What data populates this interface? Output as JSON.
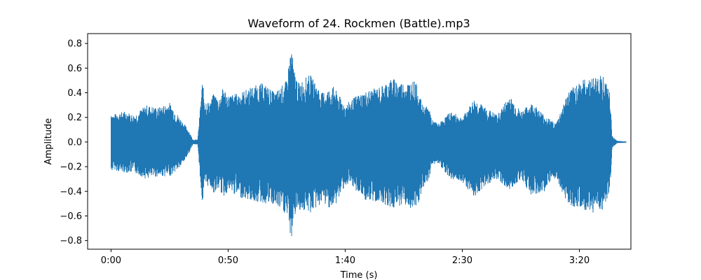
{
  "chart_data": {
    "type": "area",
    "title": "Waveform of 24. Rockmen (Battle).mp3",
    "xlabel": "Time (s)",
    "ylabel": "Amplitude",
    "xlim": [
      -10,
      222
    ],
    "ylim": [
      -0.87,
      0.88
    ],
    "x_ticks": [
      {
        "value": 0,
        "label": "0:00"
      },
      {
        "value": 50,
        "label": "0:50"
      },
      {
        "value": 100,
        "label": "1:40"
      },
      {
        "value": 150,
        "label": "2:30"
      },
      {
        "value": 200,
        "label": "3:20"
      }
    ],
    "y_ticks": [
      {
        "value": 0.8,
        "label": "0.8"
      },
      {
        "value": 0.6,
        "label": "0.6"
      },
      {
        "value": 0.4,
        "label": "0.4"
      },
      {
        "value": 0.2,
        "label": "0.2"
      },
      {
        "value": 0.0,
        "label": "0.0"
      },
      {
        "value": -0.2,
        "label": "−0.2"
      },
      {
        "value": -0.4,
        "label": "−0.4"
      },
      {
        "value": -0.6,
        "label": "−0.6"
      },
      {
        "value": -0.8,
        "label": "−0.8"
      }
    ],
    "grid": false,
    "series": [
      {
        "color": "#1f77b4",
        "envelope": {
          "t": [
            0,
            1,
            3,
            6,
            10,
            15,
            20,
            25,
            30,
            33,
            35,
            37,
            39,
            40,
            42,
            44,
            46,
            48,
            50,
            55,
            60,
            65,
            70,
            75,
            77,
            78,
            80,
            85,
            90,
            95,
            100,
            105,
            110,
            115,
            120,
            125,
            130,
            133,
            136,
            137,
            140,
            145,
            150,
            155,
            160,
            165,
            170,
            175,
            180,
            185,
            190,
            195,
            200,
            205,
            210,
            213,
            214,
            216,
            220
          ],
          "max": [
            0.25,
            0.22,
            0.24,
            0.25,
            0.22,
            0.3,
            0.28,
            0.32,
            0.18,
            0.1,
            0.02,
            0.02,
            0.5,
            0.35,
            0.32,
            0.4,
            0.35,
            0.45,
            0.38,
            0.4,
            0.45,
            0.48,
            0.4,
            0.5,
            0.8,
            0.6,
            0.48,
            0.55,
            0.4,
            0.45,
            0.3,
            0.38,
            0.42,
            0.45,
            0.52,
            0.48,
            0.5,
            0.3,
            0.28,
            0.18,
            0.15,
            0.25,
            0.2,
            0.35,
            0.28,
            0.22,
            0.38,
            0.25,
            0.32,
            0.22,
            0.15,
            0.4,
            0.5,
            0.52,
            0.55,
            0.4,
            0.05,
            0.01,
            0.005
          ],
          "min": [
            -0.25,
            -0.22,
            -0.24,
            -0.25,
            -0.25,
            -0.3,
            -0.28,
            -0.28,
            -0.2,
            -0.1,
            -0.02,
            -0.02,
            -0.52,
            -0.38,
            -0.35,
            -0.42,
            -0.38,
            -0.45,
            -0.4,
            -0.45,
            -0.48,
            -0.5,
            -0.52,
            -0.6,
            -0.8,
            -0.62,
            -0.55,
            -0.58,
            -0.5,
            -0.55,
            -0.35,
            -0.4,
            -0.5,
            -0.48,
            -0.55,
            -0.5,
            -0.58,
            -0.4,
            -0.3,
            -0.18,
            -0.18,
            -0.3,
            -0.32,
            -0.45,
            -0.35,
            -0.3,
            -0.4,
            -0.3,
            -0.45,
            -0.4,
            -0.3,
            -0.5,
            -0.55,
            -0.58,
            -0.55,
            -0.45,
            -0.05,
            -0.01,
            -0.005
          ]
        }
      }
    ]
  }
}
